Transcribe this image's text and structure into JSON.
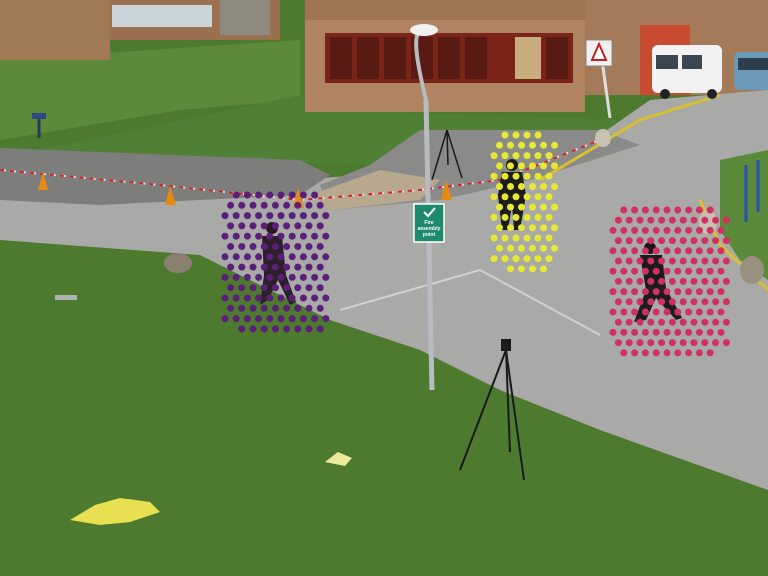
{
  "scene": {
    "sign": {
      "text_line1": "Fire",
      "text_line2": "assembly",
      "text_line3": "point"
    },
    "tracked_people": [
      {
        "id": "person-purple",
        "color": "#5a1f7a"
      },
      {
        "id": "person-yellow",
        "color": "#e8e832"
      },
      {
        "id": "person-red",
        "color": "#d23060"
      }
    ]
  }
}
